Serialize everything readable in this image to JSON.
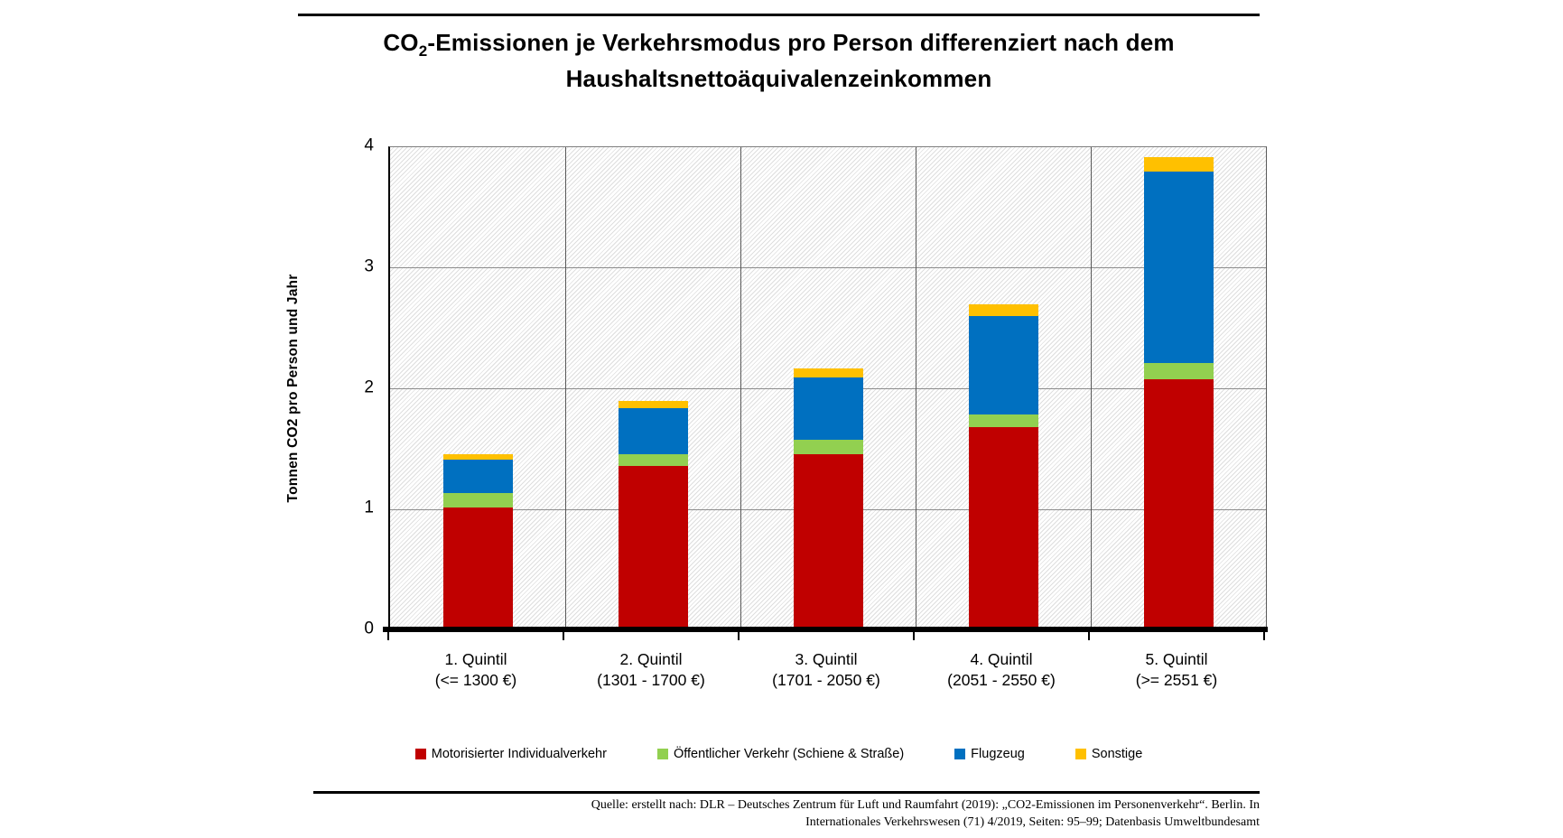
{
  "title": {
    "co2_prefix": "CO",
    "co2_subscript": "2",
    "line1_rest": "-Emissionen je Verkehrsmodus pro Person differenziert nach dem",
    "line2": "Haushaltsnettoäquivalenzeinkommen"
  },
  "y_axis": {
    "label": "Tonnen CO2 pro Person und Jahr",
    "ticks": [
      0,
      1,
      2,
      3,
      4
    ]
  },
  "chart_data": {
    "type": "bar",
    "stacked": true,
    "title": "CO2-Emissionen je Verkehrsmodus pro Person differenziert nach dem Haushaltsnettoäquivalenzeinkommen",
    "xlabel": "",
    "ylabel": "Tonnen CO2 pro Person und Jahr",
    "ylim": [
      0,
      4
    ],
    "grid": true,
    "legend_position": "bottom",
    "plot_background": "white with fine light-gray diagonal hatch",
    "categories": [
      {
        "line1": "1. Quintil",
        "line2": "(<= 1300 €)"
      },
      {
        "line1": "2. Quintil",
        "line2": "(1301 - 1700 €)"
      },
      {
        "line1": "3. Quintil",
        "line2": "(1701 - 2050 €)"
      },
      {
        "line1": "4. Quintil",
        "line2": "(2051 - 2550 €)"
      },
      {
        "line1": "5. Quintil",
        "line2": "(>= 2551 €)"
      }
    ],
    "series": [
      {
        "name": "Motorisierter Individualverkehr",
        "color": "#C00000",
        "values": [
          1.02,
          1.36,
          1.46,
          1.68,
          2.08
        ]
      },
      {
        "name": "Öffentlicher Verkehr (Schiene & Straße)",
        "color": "#92D050",
        "values": [
          0.12,
          0.1,
          0.12,
          0.11,
          0.13
        ]
      },
      {
        "name": "Flugzeug",
        "color": "#0070C0",
        "values": [
          0.27,
          0.38,
          0.51,
          0.81,
          1.59
        ]
      },
      {
        "name": "Sonstige",
        "color": "#FFC000",
        "values": [
          0.05,
          0.06,
          0.08,
          0.1,
          0.12
        ]
      }
    ],
    "totals": [
      1.46,
      1.9,
      2.17,
      2.7,
      3.92
    ]
  },
  "source": {
    "line1": "Quelle: erstellt nach: DLR – Deutsches Zentrum für Luft und Raumfahrt (2019): „CO2-Emissionen im Personenverkehr“. Berlin. In",
    "line2": "Internationales Verkehrswesen (71) 4/2019, Seiten: 95–99; Datenbasis Umweltbundesamt"
  }
}
